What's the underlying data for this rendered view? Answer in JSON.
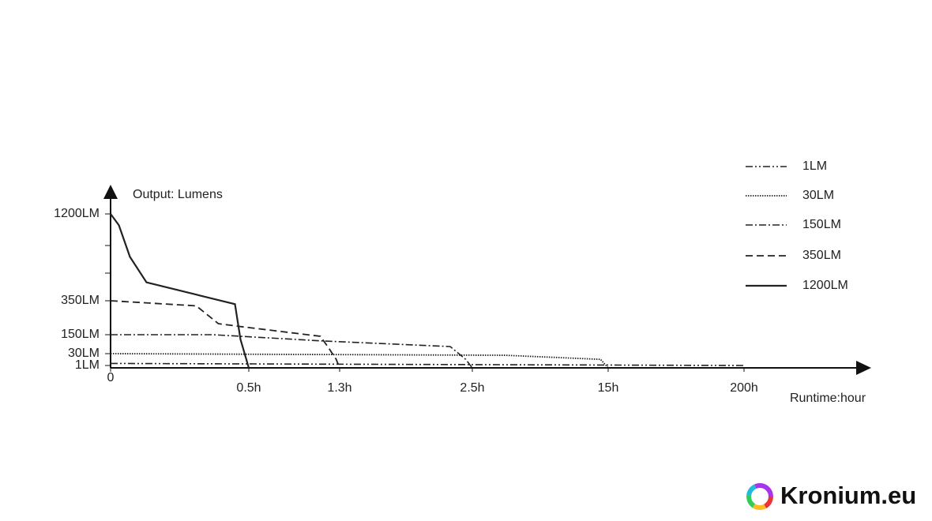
{
  "chart_data": {
    "type": "line",
    "y_label": "Output: Lumens",
    "x_label": "Runtime:hour",
    "brand": "Kronium.eu",
    "xticks": [
      0,
      {
        "value": 0.5,
        "label": "0.5h"
      },
      {
        "value": 1.3,
        "label": "1.3h"
      },
      {
        "value": 2.5,
        "label": "2.5h"
      },
      {
        "value": 15,
        "label": "15h"
      },
      {
        "value": 200,
        "label": "200h"
      }
    ],
    "yticks": [
      {
        "value": 1,
        "label": "1LM"
      },
      {
        "value": 30,
        "label": "30LM"
      },
      {
        "value": 150,
        "label": "150LM"
      },
      {
        "value": 350,
        "label": "350LM"
      },
      {
        "value": 1200,
        "label": "1200LM"
      }
    ],
    "legend": "top-right",
    "series": [
      {
        "name": "1LM",
        "color": "#222222",
        "line_style": "dash-dot-dot",
        "x": [
          0,
          200
        ],
        "values": [
          6,
          1
        ]
      },
      {
        "name": "30LM",
        "color": "#222222",
        "line_style": "dotted",
        "x": [
          0,
          5.5,
          14.3,
          15
        ],
        "values": [
          30,
          26,
          16,
          0
        ]
      },
      {
        "name": "150LM",
        "color": "#222222",
        "line_style": "dash-dot",
        "x": [
          0,
          0.37,
          1.16,
          2.3,
          2.44,
          2.5
        ],
        "values": [
          150,
          150,
          110,
          75,
          16,
          0
        ]
      },
      {
        "name": "350LM",
        "color": "#222222",
        "line_style": "dashed",
        "x": [
          0,
          0.31,
          0.39,
          0.46,
          1.13,
          1.2,
          1.27,
          1.3
        ],
        "values": [
          350,
          320,
          215,
          200,
          140,
          70,
          16,
          0
        ]
      },
      {
        "name": "1200LM",
        "color": "#222222",
        "line_style": "solid",
        "x": [
          0,
          0.03,
          0.07,
          0.13,
          0.31,
          0.45,
          0.47,
          0.5
        ],
        "values": [
          1200,
          1090,
          780,
          530,
          410,
          330,
          120,
          0
        ]
      }
    ]
  }
}
